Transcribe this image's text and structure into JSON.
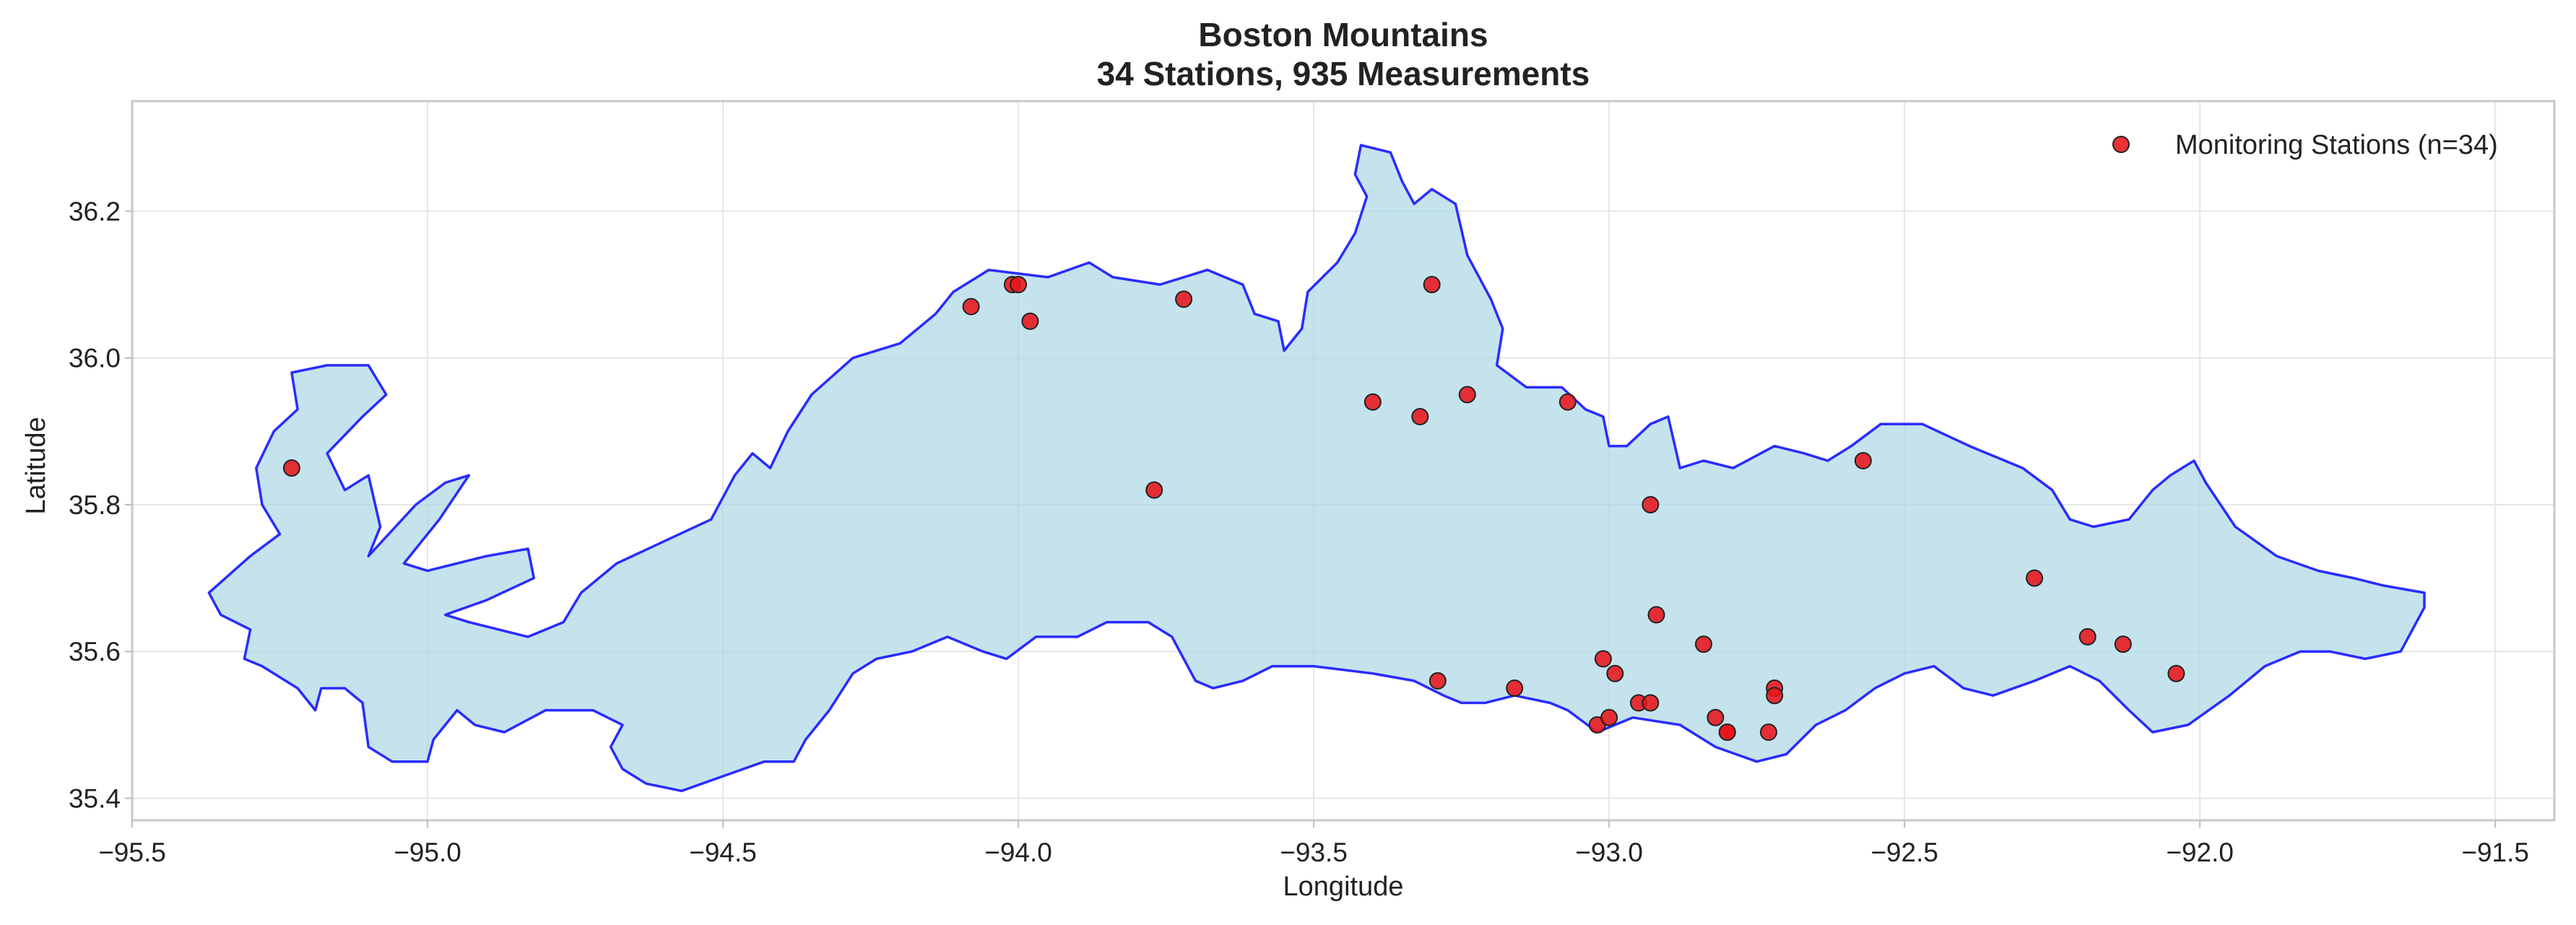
{
  "chart_data": {
    "type": "scatter",
    "title": "Boston Mountains",
    "subtitle": "34 Stations, 935 Measurements",
    "xlabel": "Longitude",
    "ylabel": "Latitude",
    "xlim": [
      -95.5,
      -91.4
    ],
    "ylim": [
      35.37,
      36.35
    ],
    "xticks": [
      -95.5,
      -95.0,
      -94.5,
      -94.0,
      -93.5,
      -93.0,
      -92.5,
      -92.0,
      -91.5
    ],
    "xtick_labels": [
      "−95.5",
      "−95.0",
      "−94.5",
      "−94.0",
      "−93.5",
      "−93.0",
      "−92.5",
      "−92.0",
      "−91.5"
    ],
    "yticks": [
      35.4,
      35.6,
      35.8,
      36.0,
      36.2
    ],
    "ytick_labels": [
      "35.4",
      "35.6",
      "35.8",
      "36.0",
      "36.2"
    ],
    "grid": true,
    "legend_position": "top-right",
    "region": {
      "fill_color": "#add8e6",
      "edge_color": "#2b2bff",
      "outline": [
        [
          -95.17,
          35.99
        ],
        [
          -95.1,
          35.99
        ],
        [
          -95.07,
          35.95
        ],
        [
          -95.11,
          35.92
        ],
        [
          -95.17,
          35.87
        ],
        [
          -95.14,
          35.82
        ],
        [
          -95.1,
          35.84
        ],
        [
          -95.08,
          35.77
        ],
        [
          -95.1,
          35.73
        ],
        [
          -95.02,
          35.8
        ],
        [
          -94.97,
          35.83
        ],
        [
          -94.93,
          35.84
        ],
        [
          -94.98,
          35.78
        ],
        [
          -95.04,
          35.72
        ],
        [
          -95.0,
          35.71
        ],
        [
          -94.9,
          35.73
        ],
        [
          -94.83,
          35.74
        ],
        [
          -94.82,
          35.7
        ],
        [
          -94.9,
          35.67
        ],
        [
          -94.97,
          35.65
        ],
        [
          -94.93,
          35.64
        ],
        [
          -94.83,
          35.62
        ],
        [
          -94.77,
          35.64
        ],
        [
          -94.74,
          35.68
        ],
        [
          -94.68,
          35.72
        ],
        [
          -94.6,
          35.75
        ],
        [
          -94.52,
          35.78
        ],
        [
          -94.48,
          35.84
        ],
        [
          -94.45,
          35.87
        ],
        [
          -94.42,
          35.85
        ],
        [
          -94.39,
          35.9
        ],
        [
          -94.35,
          35.95
        ],
        [
          -94.28,
          36.0
        ],
        [
          -94.2,
          36.02
        ],
        [
          -94.14,
          36.06
        ],
        [
          -94.11,
          36.09
        ],
        [
          -94.05,
          36.12
        ],
        [
          -93.95,
          36.11
        ],
        [
          -93.88,
          36.13
        ],
        [
          -93.84,
          36.11
        ],
        [
          -93.76,
          36.1
        ],
        [
          -93.68,
          36.12
        ],
        [
          -93.62,
          36.1
        ],
        [
          -93.6,
          36.06
        ],
        [
          -93.56,
          36.05
        ],
        [
          -93.55,
          36.01
        ],
        [
          -93.52,
          36.04
        ],
        [
          -93.51,
          36.09
        ],
        [
          -93.46,
          36.13
        ],
        [
          -93.43,
          36.17
        ],
        [
          -93.41,
          36.22
        ],
        [
          -93.43,
          36.25
        ],
        [
          -93.42,
          36.29
        ],
        [
          -93.37,
          36.28
        ],
        [
          -93.35,
          36.24
        ],
        [
          -93.33,
          36.21
        ],
        [
          -93.3,
          36.23
        ],
        [
          -93.26,
          36.21
        ],
        [
          -93.24,
          36.14
        ],
        [
          -93.2,
          36.08
        ],
        [
          -93.18,
          36.04
        ],
        [
          -93.19,
          35.99
        ],
        [
          -93.14,
          35.96
        ],
        [
          -93.08,
          35.96
        ],
        [
          -93.04,
          35.93
        ],
        [
          -93.01,
          35.92
        ],
        [
          -93.0,
          35.88
        ],
        [
          -92.97,
          35.88
        ],
        [
          -92.93,
          35.91
        ],
        [
          -92.9,
          35.92
        ],
        [
          -92.88,
          35.85
        ],
        [
          -92.84,
          35.86
        ],
        [
          -92.79,
          35.85
        ],
        [
          -92.72,
          35.88
        ],
        [
          -92.67,
          35.87
        ],
        [
          -92.63,
          35.86
        ],
        [
          -92.59,
          35.88
        ],
        [
          -92.54,
          35.91
        ],
        [
          -92.47,
          35.91
        ],
        [
          -92.39,
          35.88
        ],
        [
          -92.3,
          35.85
        ],
        [
          -92.25,
          35.82
        ],
        [
          -92.22,
          35.78
        ],
        [
          -92.18,
          35.77
        ],
        [
          -92.12,
          35.78
        ],
        [
          -92.08,
          35.82
        ],
        [
          -92.05,
          35.84
        ],
        [
          -92.01,
          35.86
        ],
        [
          -91.99,
          35.83
        ],
        [
          -91.94,
          35.77
        ],
        [
          -91.87,
          35.73
        ],
        [
          -91.8,
          35.71
        ],
        [
          -91.74,
          35.7
        ],
        [
          -91.69,
          35.69
        ],
        [
          -91.62,
          35.68
        ],
        [
          -91.62,
          35.66
        ],
        [
          -91.66,
          35.6
        ],
        [
          -91.72,
          35.59
        ],
        [
          -91.78,
          35.6
        ],
        [
          -91.83,
          35.6
        ],
        [
          -91.89,
          35.58
        ],
        [
          -91.95,
          35.54
        ],
        [
          -92.02,
          35.5
        ],
        [
          -92.08,
          35.49
        ],
        [
          -92.12,
          35.52
        ],
        [
          -92.17,
          35.56
        ],
        [
          -92.22,
          35.58
        ],
        [
          -92.28,
          35.56
        ],
        [
          -92.35,
          35.54
        ],
        [
          -92.4,
          35.55
        ],
        [
          -92.45,
          35.58
        ],
        [
          -92.5,
          35.57
        ],
        [
          -92.55,
          35.55
        ],
        [
          -92.6,
          35.52
        ],
        [
          -92.65,
          35.5
        ],
        [
          -92.7,
          35.46
        ],
        [
          -92.75,
          35.45
        ],
        [
          -92.82,
          35.47
        ],
        [
          -92.88,
          35.5
        ],
        [
          -92.96,
          35.51
        ],
        [
          -93.02,
          35.49
        ],
        [
          -93.07,
          35.52
        ],
        [
          -93.1,
          35.53
        ],
        [
          -93.16,
          35.54
        ],
        [
          -93.21,
          35.53
        ],
        [
          -93.25,
          35.53
        ],
        [
          -93.28,
          35.54
        ],
        [
          -93.33,
          35.56
        ],
        [
          -93.4,
          35.57
        ],
        [
          -93.5,
          35.58
        ],
        [
          -93.57,
          35.58
        ],
        [
          -93.62,
          35.56
        ],
        [
          -93.67,
          35.55
        ],
        [
          -93.7,
          35.56
        ],
        [
          -93.74,
          35.62
        ],
        [
          -93.78,
          35.64
        ],
        [
          -93.85,
          35.64
        ],
        [
          -93.9,
          35.62
        ],
        [
          -93.97,
          35.62
        ],
        [
          -94.02,
          35.59
        ],
        [
          -94.06,
          35.6
        ],
        [
          -94.12,
          35.62
        ],
        [
          -94.18,
          35.6
        ],
        [
          -94.24,
          35.59
        ],
        [
          -94.28,
          35.57
        ],
        [
          -94.32,
          35.52
        ],
        [
          -94.36,
          35.48
        ],
        [
          -94.38,
          35.45
        ],
        [
          -94.43,
          35.45
        ],
        [
          -94.5,
          35.43
        ],
        [
          -94.57,
          35.41
        ],
        [
          -94.63,
          35.42
        ],
        [
          -94.67,
          35.44
        ],
        [
          -94.69,
          35.47
        ],
        [
          -94.67,
          35.5
        ],
        [
          -94.72,
          35.52
        ],
        [
          -94.8,
          35.52
        ],
        [
          -94.87,
          35.49
        ],
        [
          -94.92,
          35.5
        ],
        [
          -94.95,
          35.52
        ],
        [
          -94.99,
          35.48
        ],
        [
          -95.0,
          35.45
        ],
        [
          -95.06,
          35.45
        ],
        [
          -95.1,
          35.47
        ],
        [
          -95.11,
          35.53
        ],
        [
          -95.14,
          35.55
        ],
        [
          -95.18,
          35.55
        ],
        [
          -95.19,
          35.52
        ],
        [
          -95.22,
          35.55
        ],
        [
          -95.28,
          35.58
        ],
        [
          -95.31,
          35.59
        ],
        [
          -95.3,
          35.63
        ],
        [
          -95.35,
          35.65
        ],
        [
          -95.37,
          35.68
        ],
        [
          -95.3,
          35.73
        ],
        [
          -95.25,
          35.76
        ],
        [
          -95.28,
          35.8
        ],
        [
          -95.29,
          35.85
        ],
        [
          -95.26,
          35.9
        ],
        [
          -95.22,
          35.93
        ],
        [
          -95.23,
          35.98
        ]
      ]
    },
    "series": [
      {
        "name": "Monitoring Stations (n=34)",
        "color": "#e8141b",
        "x": [
          -95.23,
          -94.08,
          -94.01,
          -94.0,
          -93.98,
          -93.72,
          -93.3,
          -93.4,
          -93.32,
          -93.24,
          -93.07,
          -93.77,
          -92.93,
          -92.57,
          -92.92,
          -92.28,
          -92.19,
          -92.13,
          -92.04,
          -92.84,
          -93.01,
          -92.99,
          -92.95,
          -92.93,
          -92.72,
          -92.72,
          -93.29,
          -93.16,
          -92.82,
          -92.8,
          -92.8,
          -92.73,
          -93.02,
          -93.0
        ],
        "y": [
          35.85,
          36.07,
          36.1,
          36.1,
          36.05,
          36.08,
          36.1,
          35.94,
          35.92,
          35.95,
          35.94,
          35.82,
          35.8,
          35.86,
          35.65,
          35.7,
          35.62,
          35.61,
          35.57,
          35.61,
          35.59,
          35.57,
          35.53,
          35.53,
          35.55,
          35.54,
          35.56,
          35.55,
          35.51,
          35.49,
          35.49,
          35.49,
          35.5,
          35.51
        ]
      }
    ]
  }
}
